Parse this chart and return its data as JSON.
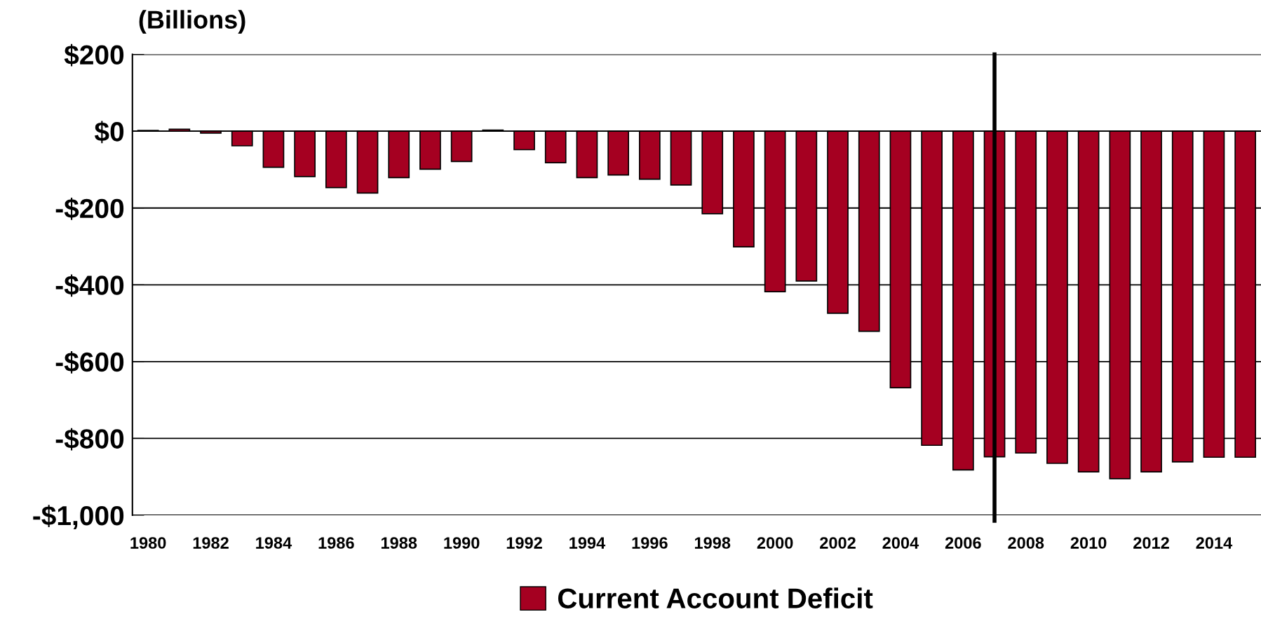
{
  "chart_data": {
    "type": "bar",
    "ylabel": "(Billions)",
    "x": [
      1980,
      1981,
      1982,
      1983,
      1984,
      1985,
      1986,
      1987,
      1988,
      1989,
      1990,
      1991,
      1992,
      1993,
      1994,
      1995,
      1996,
      1997,
      1998,
      1999,
      2000,
      2001,
      2002,
      2003,
      2004,
      2005,
      2006,
      2007,
      2008,
      2009,
      2010,
      2011,
      2012,
      2013,
      2014,
      2015
    ],
    "series": [
      {
        "name": "Current Account Deficit",
        "color": "#a50021",
        "values": [
          2,
          5,
          -5,
          -38,
          -94,
          -118,
          -147,
          -161,
          -121,
          -99,
          -79,
          3,
          -48,
          -82,
          -121,
          -114,
          -125,
          -140,
          -215,
          -301,
          -418,
          -390,
          -474,
          -521,
          -668,
          -818,
          -882,
          -848,
          -838,
          -865,
          -887,
          -905,
          -887,
          -861,
          -849,
          -849
        ]
      }
    ],
    "xlim": [
      1979.5,
      2015.5
    ],
    "xticks": [
      1980,
      1982,
      1984,
      1986,
      1988,
      1990,
      1992,
      1994,
      1996,
      1998,
      2000,
      2002,
      2004,
      2006,
      2008,
      2010,
      2012,
      2014
    ],
    "ylim": [
      -1000,
      200
    ],
    "yticks": [
      {
        "value": 200,
        "label": "$200"
      },
      {
        "value": 0,
        "label": "$0"
      },
      {
        "value": -200,
        "label": "-$200"
      },
      {
        "value": -400,
        "label": "-$400"
      },
      {
        "value": -600,
        "label": "-$600"
      },
      {
        "value": -800,
        "label": "-$800"
      },
      {
        "value": -1000,
        "label": "-$1,000"
      }
    ],
    "grid": "y",
    "legend": "bottom",
    "ref_lines": [
      {
        "axis": "x",
        "value": 2007,
        "color": "#000000"
      }
    ]
  }
}
